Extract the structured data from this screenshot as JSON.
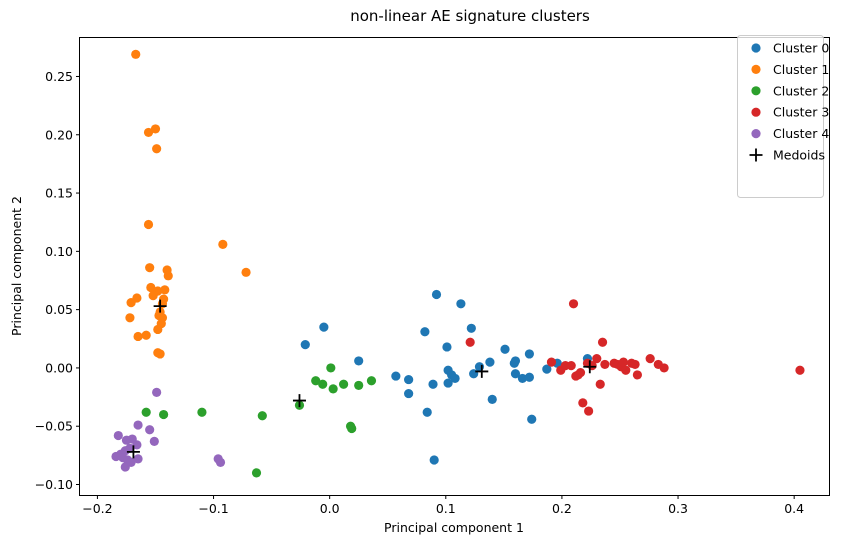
{
  "chart_data": {
    "type": "scatter",
    "title": "non-linear AE signature clusters",
    "xlabel": "Principal component 1",
    "ylabel": "Principal component 2",
    "xlim": [
      -0.215,
      0.43
    ],
    "ylim": [
      -0.109,
      0.283
    ],
    "xticks": [
      -0.2,
      -0.1,
      0.0,
      0.1,
      0.2,
      0.3,
      0.4
    ],
    "xtick_labels": [
      "−0.2",
      "−0.1",
      "0.0",
      "0.1",
      "0.2",
      "0.3",
      "0.4"
    ],
    "yticks": [
      -0.1,
      -0.05,
      0.0,
      0.05,
      0.1,
      0.15,
      0.2,
      0.25
    ],
    "ytick_labels": [
      "−0.10",
      "−0.05",
      "0.00",
      "0.05",
      "0.10",
      "0.15",
      "0.20",
      "0.25"
    ],
    "grid": false,
    "legend_position": "top-right",
    "series": [
      {
        "name": "Cluster 0",
        "color": "#1f77b4",
        "points": [
          [
            -0.021,
            0.02
          ],
          [
            -0.005,
            0.035
          ],
          [
            0.025,
            0.006
          ],
          [
            0.057,
            -0.007
          ],
          [
            0.068,
            -0.01
          ],
          [
            0.068,
            -0.022
          ],
          [
            0.082,
            0.031
          ],
          [
            0.084,
            -0.038
          ],
          [
            0.089,
            -0.014
          ],
          [
            0.092,
            0.063
          ],
          [
            0.101,
            0.018
          ],
          [
            0.102,
            -0.002
          ],
          [
            0.105,
            -0.006
          ],
          [
            0.108,
            -0.009
          ],
          [
            0.102,
            -0.013
          ],
          [
            0.113,
            0.055
          ],
          [
            0.122,
            0.034
          ],
          [
            0.124,
            -0.005
          ],
          [
            0.129,
            0.001
          ],
          [
            0.138,
            0.005
          ],
          [
            0.14,
            -0.027
          ],
          [
            0.151,
            0.016
          ],
          [
            0.159,
            0.004
          ],
          [
            0.16,
            0.006
          ],
          [
            0.16,
            -0.005
          ],
          [
            0.166,
            -0.009
          ],
          [
            0.172,
            0.012
          ],
          [
            0.172,
            -0.008
          ],
          [
            0.174,
            -0.044
          ],
          [
            0.09,
            -0.079
          ],
          [
            0.187,
            -0.001
          ],
          [
            0.196,
            0.004
          ],
          [
            0.222,
            0.008
          ]
        ]
      },
      {
        "name": "Cluster 1",
        "color": "#ff7f0e",
        "points": [
          [
            -0.167,
            0.269
          ],
          [
            -0.156,
            0.202
          ],
          [
            -0.15,
            0.205
          ],
          [
            -0.149,
            0.188
          ],
          [
            -0.156,
            0.123
          ],
          [
            -0.155,
            0.086
          ],
          [
            -0.092,
            0.106
          ],
          [
            -0.072,
            0.082
          ],
          [
            -0.14,
            0.084
          ],
          [
            -0.139,
            0.079
          ],
          [
            -0.154,
            0.069
          ],
          [
            -0.148,
            0.066
          ],
          [
            -0.142,
            0.067
          ],
          [
            -0.152,
            0.062
          ],
          [
            -0.166,
            0.06
          ],
          [
            -0.171,
            0.056
          ],
          [
            -0.143,
            0.059
          ],
          [
            -0.144,
            0.055
          ],
          [
            -0.146,
            0.048
          ],
          [
            -0.144,
            0.043
          ],
          [
            -0.147,
            0.045
          ],
          [
            -0.172,
            0.043
          ],
          [
            -0.145,
            0.038
          ],
          [
            -0.148,
            0.033
          ],
          [
            -0.158,
            0.028
          ],
          [
            -0.165,
            0.027
          ],
          [
            -0.148,
            0.013
          ],
          [
            -0.146,
            0.012
          ]
        ]
      },
      {
        "name": "Cluster 2",
        "color": "#2ca02c",
        "points": [
          [
            -0.158,
            -0.038
          ],
          [
            -0.143,
            -0.04
          ],
          [
            -0.11,
            -0.038
          ],
          [
            -0.058,
            -0.041
          ],
          [
            -0.063,
            -0.09
          ],
          [
            -0.026,
            -0.032
          ],
          [
            -0.012,
            -0.011
          ],
          [
            -0.006,
            -0.014
          ],
          [
            0.001,
            0.0
          ],
          [
            0.003,
            -0.018
          ],
          [
            0.012,
            -0.014
          ],
          [
            0.018,
            -0.05
          ],
          [
            0.019,
            -0.052
          ],
          [
            0.025,
            -0.015
          ],
          [
            0.036,
            -0.011
          ]
        ]
      },
      {
        "name": "Cluster 3",
        "color": "#d62728",
        "points": [
          [
            0.121,
            0.022
          ],
          [
            0.191,
            0.005
          ],
          [
            0.199,
            -0.002
          ],
          [
            0.203,
            0.002
          ],
          [
            0.208,
            0.002
          ],
          [
            0.21,
            0.055
          ],
          [
            0.212,
            -0.007
          ],
          [
            0.214,
            -0.006
          ],
          [
            0.216,
            -0.004
          ],
          [
            0.218,
            -0.03
          ],
          [
            0.222,
            0.004
          ],
          [
            0.223,
            -0.037
          ],
          [
            0.226,
            0.002
          ],
          [
            0.23,
            0.008
          ],
          [
            0.233,
            -0.014
          ],
          [
            0.235,
            0.022
          ],
          [
            0.237,
            0.003
          ],
          [
            0.245,
            0.004
          ],
          [
            0.248,
            0.003
          ],
          [
            0.251,
            0.001
          ],
          [
            0.253,
            0.005
          ],
          [
            0.255,
            -0.002
          ],
          [
            0.26,
            0.004
          ],
          [
            0.263,
            0.003
          ],
          [
            0.265,
            -0.006
          ],
          [
            0.276,
            0.008
          ],
          [
            0.283,
            0.003
          ],
          [
            0.288,
            0.0
          ],
          [
            0.405,
            -0.002
          ]
        ]
      },
      {
        "name": "Cluster 4",
        "color": "#9467bd",
        "points": [
          [
            -0.149,
            -0.021
          ],
          [
            -0.155,
            -0.053
          ],
          [
            -0.151,
            -0.063
          ],
          [
            -0.165,
            -0.049
          ],
          [
            -0.17,
            -0.061
          ],
          [
            -0.175,
            -0.062
          ],
          [
            -0.182,
            -0.058
          ],
          [
            -0.166,
            -0.066
          ],
          [
            -0.172,
            -0.069
          ],
          [
            -0.176,
            -0.071
          ],
          [
            -0.18,
            -0.074
          ],
          [
            -0.184,
            -0.076
          ],
          [
            -0.178,
            -0.077
          ],
          [
            -0.174,
            -0.079
          ],
          [
            -0.171,
            -0.081
          ],
          [
            -0.176,
            -0.085
          ],
          [
            -0.165,
            -0.078
          ],
          [
            -0.096,
            -0.078
          ],
          [
            -0.094,
            -0.081
          ]
        ]
      }
    ],
    "medoids": {
      "name": "Medoids",
      "color": "#000000",
      "marker": "plus",
      "points": [
        [
          -0.146,
          0.053
        ],
        [
          -0.169,
          -0.072
        ],
        [
          -0.026,
          -0.028
        ],
        [
          0.131,
          -0.003
        ],
        [
          0.224,
          0.001
        ]
      ]
    }
  }
}
